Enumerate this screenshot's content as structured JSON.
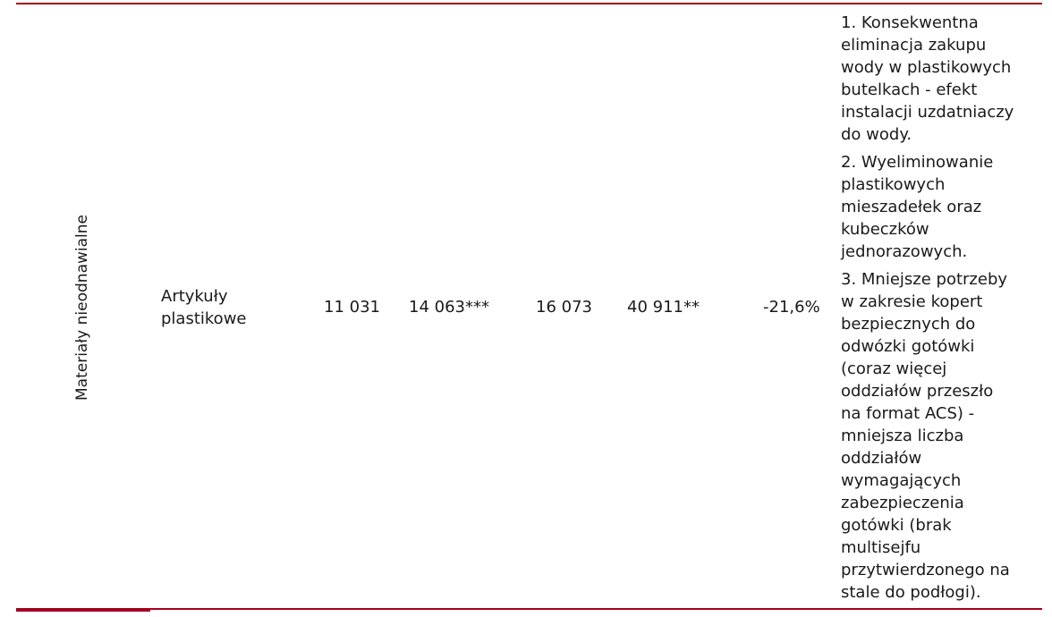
{
  "row": {
    "category": "Materiały nieodnawialne",
    "item": "Artykuły plastikowe",
    "values": [
      "11 031",
      "14 063***",
      "16 073",
      "40 911**",
      "-21,6%"
    ]
  },
  "notes": [
    "1.  Konsekwentna\neliminacja zakupu\nwody w plastikowych\nbutelkach - efekt\ninstalacji uzdatniaczy\ndo wody.",
    "2. Wyeliminowanie\nplastikowych\nmieszadełek oraz\nkubeczków\njednorazowych.",
    "3. Mniejsze potrzeby\nw zakresie kopert\nbezpiecznych do\nodwózki gotówki\n(coraz więcej\noddziałów przeszło\nna format ACS) -\nmniejsza liczba\noddziałów\nwymagających\nzabezpieczenia\ngotówki (brak\nmultisejfu\nprzytwierdzonego na\nstale do podłogi)."
  ],
  "colors": {
    "rule": "#a3001e",
    "text": "#1a1a1a"
  }
}
